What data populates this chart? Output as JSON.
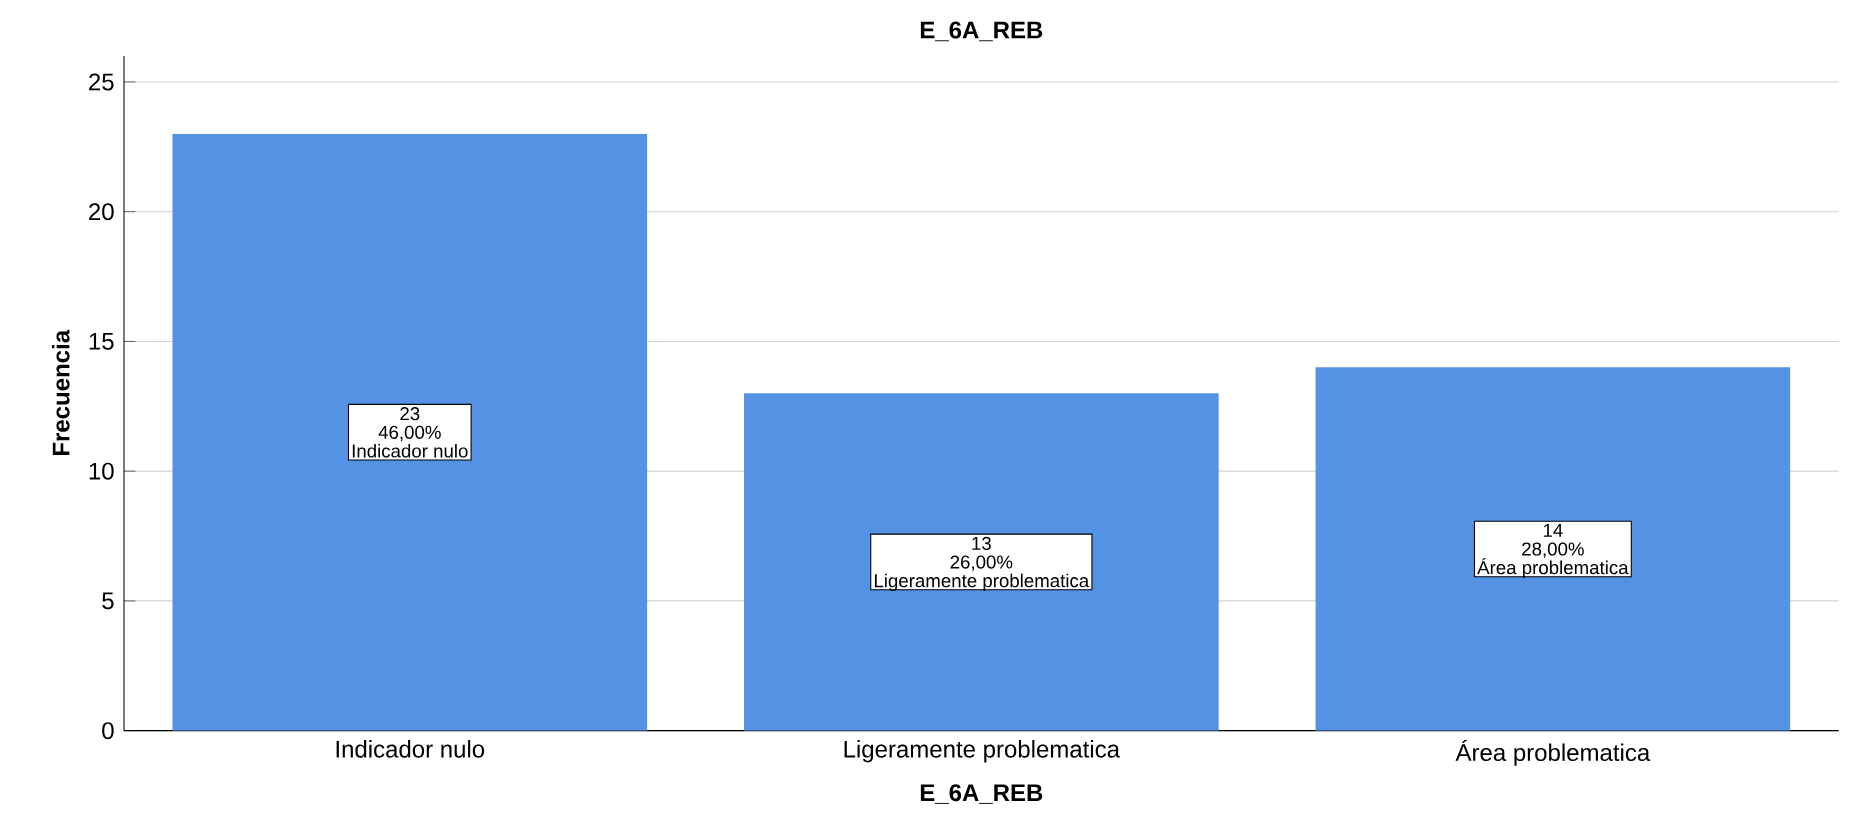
{
  "chart_data": {
    "type": "bar",
    "title": "E_6A_REB",
    "xlabel": "E_6A_REB",
    "ylabel": "Frecuencia",
    "categories": [
      "Indicador nulo",
      "Ligeramente problematica",
      "Área problematica"
    ],
    "values": [
      23,
      13,
      14
    ],
    "value_labels": [
      "23",
      "13",
      "14"
    ],
    "annotations": [
      "46,00%",
      "26,00%",
      "28,00%"
    ],
    "color": "#5592e3",
    "ylim": [
      0,
      26
    ],
    "yticks": [
      0,
      5,
      10,
      15,
      20,
      25
    ],
    "grid": "y"
  }
}
